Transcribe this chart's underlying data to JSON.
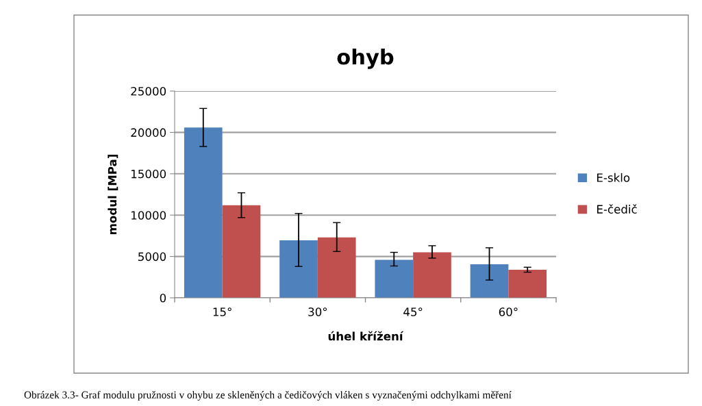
{
  "chart_data": {
    "type": "bar",
    "title": "ohyb",
    "xlabel": "úhel křížení",
    "ylabel": "modul [MPa]",
    "categories": [
      "15°",
      "30°",
      "45°",
      "60°"
    ],
    "series": [
      {
        "name": "E-sklo",
        "color": "#4f81bd",
        "values": [
          20600,
          6950,
          4600,
          4050
        ],
        "errors": [
          [
            18300,
            22900
          ],
          [
            3800,
            10200
          ],
          [
            3850,
            5500
          ],
          [
            2150,
            6050
          ]
        ]
      },
      {
        "name": "E-čedič",
        "color": "#c0504d",
        "values": [
          11200,
          7300,
          5500,
          3400
        ],
        "errors": [
          [
            9700,
            12700
          ],
          [
            5600,
            9100
          ],
          [
            4800,
            6300
          ],
          [
            3100,
            3700
          ]
        ]
      }
    ],
    "ylim": [
      0,
      25000
    ],
    "yticks": [
      0,
      5000,
      10000,
      15000,
      20000,
      25000
    ],
    "grid": "y",
    "legend": "right",
    "annotations": [
      "Obrázek 3.3- Graf modulu pružnosti v ohybu ze skleněných a čedičových vláken s vyznačenými odchylkami měření"
    ]
  }
}
